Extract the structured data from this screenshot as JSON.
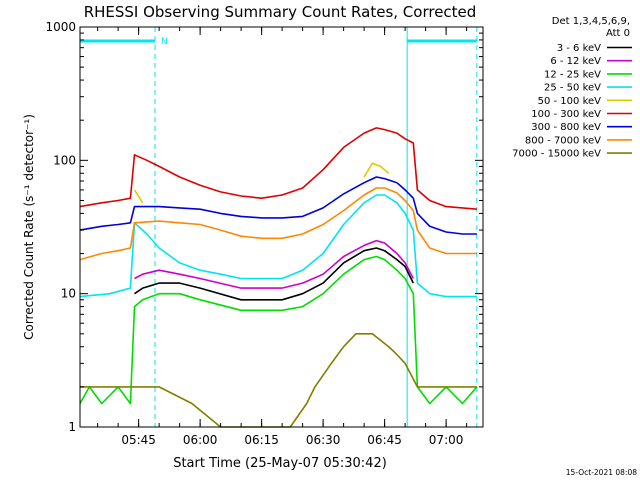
{
  "chart_data": {
    "type": "line",
    "title": "RHESSI Observing Summary Count Rates, Corrected",
    "xlabel": "Start Time (25-May-07 05:30:42)",
    "ylabel": "Corrected Count Rate (s⁻¹ detector⁻¹)",
    "yscale": "log",
    "ylim": [
      1,
      1000
    ],
    "xlim": [
      "05:30:42",
      "07:09:00"
    ],
    "x_ticks": [
      "05:45",
      "06:00",
      "06:15",
      "06:30",
      "06:45",
      "07:00"
    ],
    "y_ticks": [
      "1",
      "10",
      "100",
      "1000"
    ],
    "grid": false,
    "legend_position": "right",
    "legend_header": [
      "Det 1,3,4,5,6,9,",
      "Att 0"
    ],
    "timestamp": "15-Oct-2021 08:08",
    "annotations": [
      {
        "text": "N",
        "color": "#00e5ee",
        "kind": "night-bar",
        "start": "05:30:42",
        "end": "05:49:00"
      },
      {
        "text": "",
        "color": "#00e5ee",
        "kind": "night-bar",
        "start": "06:50:30",
        "end": "07:07:30"
      }
    ],
    "series": [
      {
        "name": "3 - 6 keV",
        "color": "#000000",
        "x": [
          "05:30:42",
          "05:43:00",
          "05:44:00",
          "05:46:00",
          "05:50:00",
          "05:55:00",
          "06:00:00",
          "06:10:00",
          "06:20:00",
          "06:25:00",
          "06:30:00",
          "06:35:00",
          "06:40:00",
          "06:43:00",
          "06:45:00",
          "06:48:00",
          "06:50:00",
          "06:52:00",
          "06:53:00"
        ],
        "y": [
          null,
          null,
          10,
          11,
          12,
          12,
          11,
          9,
          9,
          10,
          12,
          17,
          21,
          22,
          21,
          18,
          16,
          12,
          null
        ]
      },
      {
        "name": "6 - 12 keV",
        "color": "#cc00cc",
        "x": [
          "05:30:42",
          "05:43:00",
          "05:44:00",
          "05:46:00",
          "05:50:00",
          "05:55:00",
          "06:00:00",
          "06:10:00",
          "06:20:00",
          "06:25:00",
          "06:30:00",
          "06:35:00",
          "06:40:00",
          "06:43:00",
          "06:45:00",
          "06:48:00",
          "06:50:00",
          "06:52:00",
          "06:53:00"
        ],
        "y": [
          null,
          null,
          13,
          14,
          15,
          14,
          13,
          11,
          11,
          12,
          14,
          19,
          23,
          25,
          24,
          20,
          17,
          13,
          null
        ]
      },
      {
        "name": "12 - 25 keV",
        "color": "#00dd00",
        "x": [
          "05:30:42",
          "05:33:00",
          "05:36:00",
          "05:40:00",
          "05:43:00",
          "05:44:00",
          "05:46:00",
          "05:50:00",
          "05:55:00",
          "06:00:00",
          "06:10:00",
          "06:20:00",
          "06:25:00",
          "06:30:00",
          "06:35:00",
          "06:40:00",
          "06:43:00",
          "06:45:00",
          "06:48:00",
          "06:50:00",
          "06:52:00",
          "06:53:00",
          "06:56:00",
          "07:00:00",
          "07:04:00",
          "07:07:30"
        ],
        "y": [
          1.5,
          2,
          1.5,
          2,
          1.5,
          8,
          9,
          10,
          10,
          9,
          7.5,
          7.5,
          8,
          10,
          14,
          18,
          19,
          18,
          15,
          13,
          10,
          2,
          1.5,
          2,
          1.5,
          2
        ]
      },
      {
        "name": "25 - 50 keV",
        "color": "#00e5ee",
        "x": [
          "05:30:42",
          "05:38:00",
          "05:43:00",
          "05:44:00",
          "05:47:00",
          "05:50:00",
          "05:55:00",
          "06:00:00",
          "06:05:00",
          "06:10:00",
          "06:15:00",
          "06:20:00",
          "06:25:00",
          "06:30:00",
          "06:35:00",
          "06:40:00",
          "06:43:00",
          "06:45:00",
          "06:48:00",
          "06:50:00",
          "06:52:00",
          "06:53:00",
          "06:56:00",
          "07:00:00",
          "07:04:00",
          "07:07:30"
        ],
        "y": [
          9.5,
          10,
          11,
          34,
          28,
          22,
          17,
          15,
          14,
          13,
          13,
          13,
          15,
          20,
          33,
          48,
          55,
          55,
          48,
          40,
          30,
          12,
          10,
          9.5,
          9.5,
          9.5
        ]
      },
      {
        "name": "50 - 100 keV",
        "color": "#ddcc00",
        "x": [
          "05:43:00",
          "05:44:00",
          "05:46:00",
          "06:38:00",
          "06:40:00",
          "06:42:00",
          "06:44:00",
          "06:46:00",
          "06:48:00"
        ],
        "y": [
          null,
          60,
          48,
          null,
          75,
          95,
          90,
          80,
          null
        ]
      },
      {
        "name": "100 - 300 keV",
        "color": "#e00000",
        "x": [
          "05:30:42",
          "05:36:00",
          "05:40:00",
          "05:43:00",
          "05:44:00",
          "05:47:00",
          "05:50:00",
          "05:55:00",
          "06:00:00",
          "06:05:00",
          "06:10:00",
          "06:15:00",
          "06:20:00",
          "06:25:00",
          "06:30:00",
          "06:35:00",
          "06:40:00",
          "06:43:00",
          "06:45:00",
          "06:48:00",
          "06:50:00",
          "06:52:00",
          "06:53:00",
          "06:56:00",
          "07:00:00",
          "07:04:00",
          "07:07:30"
        ],
        "y": [
          45,
          48,
          50,
          52,
          110,
          100,
          90,
          75,
          65,
          58,
          54,
          52,
          55,
          62,
          85,
          125,
          160,
          175,
          170,
          160,
          145,
          135,
          60,
          50,
          45,
          44,
          43
        ]
      },
      {
        "name": "300 - 800 keV",
        "color": "#0000dd",
        "x": [
          "05:30:42",
          "05:36:00",
          "05:40:00",
          "05:43:00",
          "05:44:00",
          "05:50:00",
          "05:55:00",
          "06:00:00",
          "06:05:00",
          "06:10:00",
          "06:15:00",
          "06:20:00",
          "06:25:00",
          "06:30:00",
          "06:35:00",
          "06:40:00",
          "06:43:00",
          "06:45:00",
          "06:48:00",
          "06:50:00",
          "06:52:00",
          "06:53:00",
          "06:56:00",
          "07:00:00",
          "07:04:00",
          "07:07:30"
        ],
        "y": [
          30,
          32,
          33,
          34,
          45,
          45,
          44,
          43,
          40,
          38,
          37,
          37,
          38,
          44,
          56,
          68,
          75,
          73,
          68,
          60,
          52,
          40,
          32,
          29,
          28,
          28
        ]
      },
      {
        "name": "800 - 7000 keV",
        "color": "#ff8800",
        "x": [
          "05:30:42",
          "05:36:00",
          "05:40:00",
          "05:43:00",
          "05:44:00",
          "05:50:00",
          "05:55:00",
          "06:00:00",
          "06:05:00",
          "06:10:00",
          "06:15:00",
          "06:20:00",
          "06:25:00",
          "06:30:00",
          "06:35:00",
          "06:40:00",
          "06:43:00",
          "06:45:00",
          "06:48:00",
          "06:50:00",
          "06:52:00",
          "06:53:00",
          "06:56:00",
          "07:00:00",
          "07:04:00",
          "07:07:30"
        ],
        "y": [
          18,
          20,
          21,
          22,
          34,
          35,
          34,
          33,
          30,
          27,
          26,
          26,
          28,
          33,
          42,
          55,
          62,
          62,
          57,
          50,
          42,
          30,
          22,
          20,
          20,
          20
        ]
      },
      {
        "name": "7000 - 15000 keV",
        "color": "#808000",
        "x": [
          "05:30:42",
          "05:36:00",
          "05:43:00",
          "05:44:00",
          "05:50:00",
          "05:58:00",
          "06:05:00",
          "06:15:00",
          "06:22:00",
          "06:26:00",
          "06:28:00",
          "06:32:00",
          "06:35:00",
          "06:38:00",
          "06:42:00",
          "06:46:00",
          "06:48:00",
          "06:50:00",
          "06:53:00",
          "06:56:00",
          "07:00:00",
          "07:04:00",
          "07:07:30"
        ],
        "y": [
          2,
          2,
          2,
          2,
          2,
          1.5,
          1,
          1,
          1,
          1.5,
          2,
          3,
          4,
          5,
          5,
          4,
          3.5,
          3,
          2,
          2,
          2,
          2,
          2
        ]
      }
    ]
  }
}
